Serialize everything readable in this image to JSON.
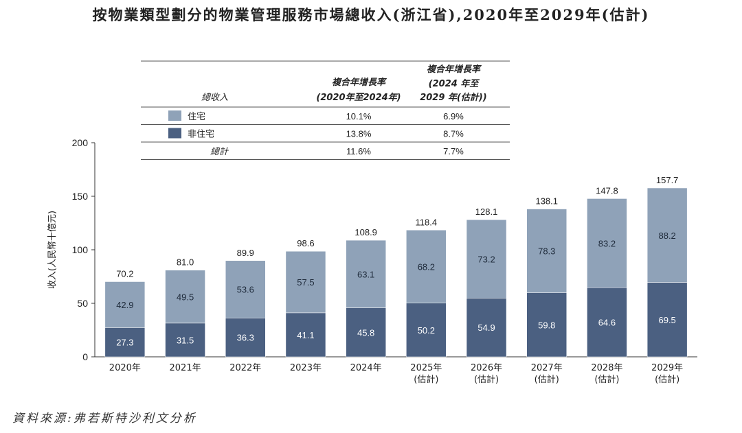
{
  "title": "按物業類型劃分的物業管理服務市場總收入(浙江省),2020年至2029年(估計)",
  "source": "資料來源:弗若斯特沙利文分析",
  "colors": {
    "residential": "#8fa2b8",
    "non_residential": "#4b6081",
    "axis": "#333333",
    "rule": "#555555"
  },
  "table": {
    "header_label": "總收入",
    "col1_header": [
      "複合年增長率",
      "(2020年至2024年)"
    ],
    "col2_header": [
      "複合年增長率",
      "(2024 年至",
      "2029 年(估計))"
    ],
    "rows": [
      {
        "label": "住宅",
        "swatch": "residential",
        "cagr1": "10.1%",
        "cagr2": "6.9%"
      },
      {
        "label": "非住宅",
        "swatch": "non_residential",
        "cagr1": "13.8%",
        "cagr2": "8.7%"
      },
      {
        "label": "總計",
        "swatch": null,
        "cagr1": "11.6%",
        "cagr2": "7.7%"
      }
    ]
  },
  "chart_data": {
    "type": "bar",
    "stacked": true,
    "ylabel": "收入(人民幣十億元)",
    "ylim": [
      0,
      200
    ],
    "yticks": [
      0,
      50,
      100,
      150,
      200
    ],
    "categories": [
      "2020年",
      "2021年",
      "2022年",
      "2023年",
      "2024年",
      "2025年(估計)",
      "2026年(估計)",
      "2027年(估計)",
      "2028年(估計)",
      "2029年(估計)"
    ],
    "category_lines": [
      [
        "2020年"
      ],
      [
        "2021年"
      ],
      [
        "2022年"
      ],
      [
        "2023年"
      ],
      [
        "2024年"
      ],
      [
        "2025年",
        "(估計)"
      ],
      [
        "2026年",
        "(估計)"
      ],
      [
        "2027年",
        "(估計)"
      ],
      [
        "2028年",
        "(估計)"
      ],
      [
        "2029年",
        "(估計)"
      ]
    ],
    "series": [
      {
        "name": "非住宅",
        "key": "non_residential",
        "values": [
          27.3,
          31.5,
          36.3,
          41.1,
          45.8,
          50.2,
          54.9,
          59.8,
          64.6,
          69.5
        ]
      },
      {
        "name": "住宅",
        "key": "residential",
        "values": [
          42.9,
          49.5,
          53.6,
          57.5,
          63.1,
          68.2,
          73.2,
          78.3,
          83.2,
          88.2
        ]
      }
    ],
    "totals": [
      70.2,
      81.0,
      89.9,
      98.6,
      108.9,
      118.4,
      128.1,
      138.1,
      147.8,
      157.7
    ]
  }
}
